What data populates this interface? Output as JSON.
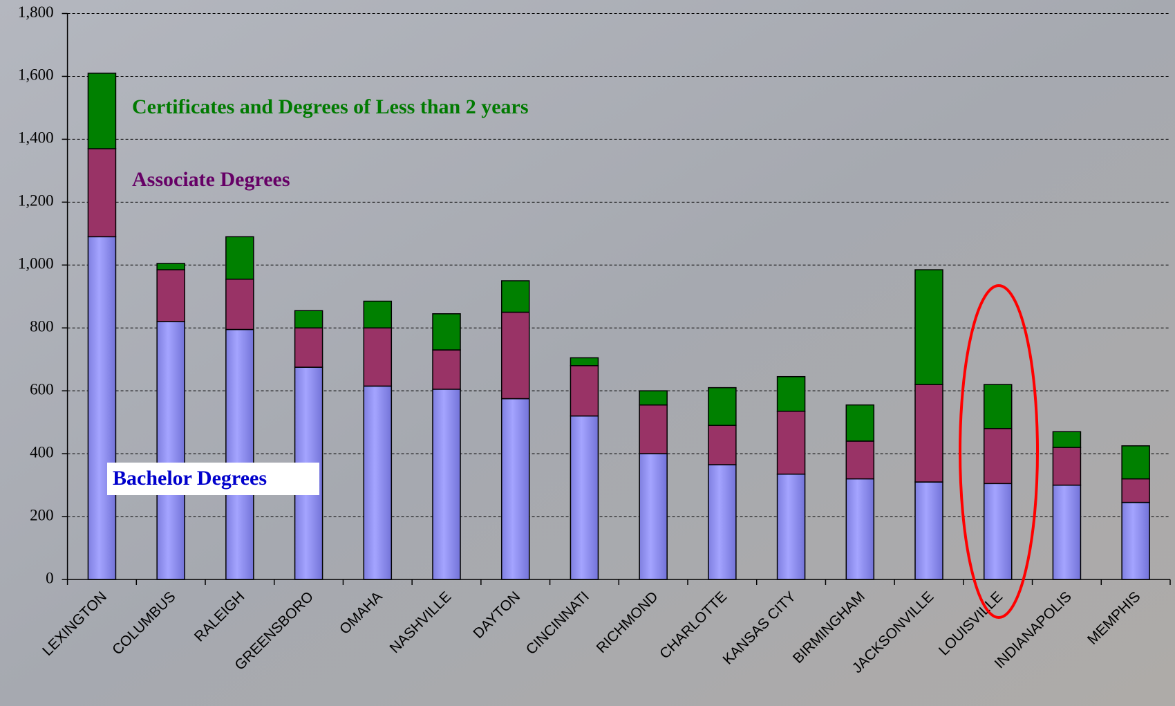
{
  "chart_data": {
    "type": "stacked_bar",
    "categories": [
      "LEXINGTON",
      "COLUMBUS",
      "RALEIGH",
      "GREENSBORO",
      "OMAHA",
      "NASHVILLE",
      "DAYTON",
      "CINCINNATI",
      "RICHMOND",
      "CHARLOTTE",
      "KANSAS CITY",
      "BIRMINGHAM",
      "JACKSONVILLE",
      "LOUISVILLE",
      "INDIANAPOLIS",
      "MEMPHIS"
    ],
    "series": [
      {
        "name": "Bachelor Degrees",
        "color": "#9999ff",
        "values": [
          1090,
          820,
          795,
          675,
          615,
          605,
          575,
          520,
          400,
          365,
          335,
          320,
          310,
          305,
          300,
          245
        ]
      },
      {
        "name": "Associate Degrees",
        "color": "#993366",
        "values": [
          280,
          165,
          160,
          125,
          185,
          125,
          275,
          160,
          155,
          125,
          200,
          120,
          310,
          175,
          120,
          75
        ]
      },
      {
        "name": "Certificates and Degrees of Less than 2 years",
        "color": "#008000",
        "values": [
          240,
          20,
          135,
          55,
          85,
          115,
          100,
          25,
          45,
          120,
          110,
          115,
          365,
          140,
          50,
          105
        ]
      }
    ],
    "ylim": [
      0,
      1800
    ],
    "yticks": [
      0,
      200,
      400,
      600,
      800,
      {
        "value": 1000,
        "label": "1,000"
      },
      {
        "value": 1200,
        "label": "1,200"
      },
      {
        "value": 1400,
        "label": "1,400"
      },
      {
        "value": 1600,
        "label": "1,600"
      },
      {
        "value": 1800,
        "label": "1,800"
      }
    ],
    "grid": true
  }
}
